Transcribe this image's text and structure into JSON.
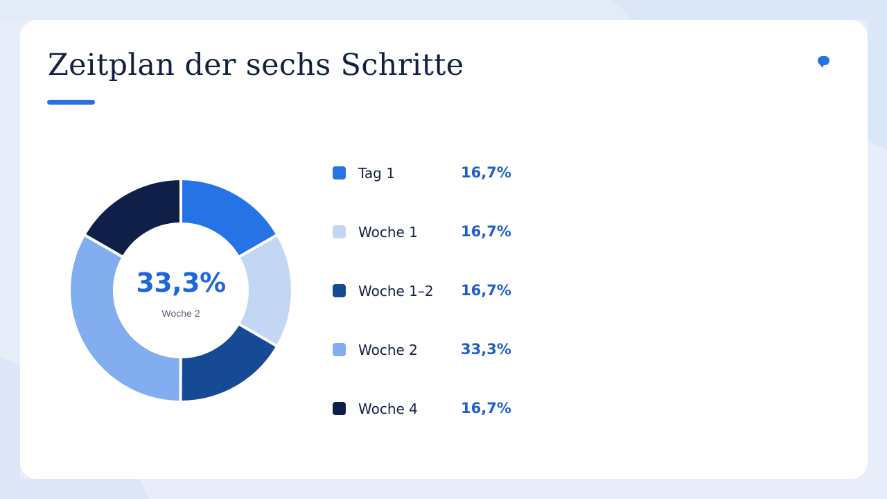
{
  "slide": {
    "title": "Zeitplan der sechs Schritte",
    "accent_color": "#2673e6",
    "logo_alt_text": "easy-cloud-24"
  },
  "chart_data": {
    "type": "pie",
    "style": "donut",
    "title": "",
    "categories": [
      "Tag 1",
      "Woche 1",
      "Woche 1–2",
      "Woche 2",
      "Woche 4"
    ],
    "values": [
      16.7,
      16.7,
      16.7,
      33.3,
      16.7
    ],
    "value_labels": [
      "16,7%",
      "16,7%",
      "16,7%",
      "33,3%",
      "16,7%"
    ],
    "colors": [
      "#2673e6",
      "#c3d7f5",
      "#174a94",
      "#82aef0",
      "#0f1f48"
    ],
    "center": {
      "value": "33,3%",
      "label": "Woche 2"
    },
    "legend_position": "right"
  }
}
